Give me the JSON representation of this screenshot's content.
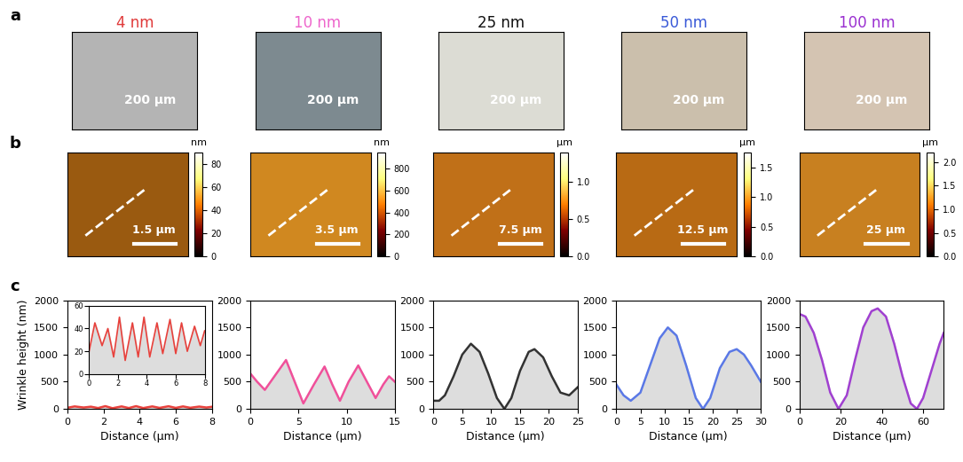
{
  "panel_labels": [
    "a",
    "b",
    "c"
  ],
  "optical": [
    {
      "title": "4 nm",
      "title_color": "#e03a3a",
      "scale_bar": "200 μm"
    },
    {
      "title": "10 nm",
      "title_color": "#ee66cc",
      "scale_bar": "200 μm"
    },
    {
      "title": "25 nm",
      "title_color": "#111111",
      "scale_bar": "200 μm"
    },
    {
      "title": "50 nm",
      "title_color": "#3a5ad8",
      "scale_bar": "200 μm"
    },
    {
      "title": "100 nm",
      "title_color": "#9a30d0",
      "scale_bar": "200 μm"
    }
  ],
  "afm": [
    {
      "scale_bar": "1.5 μm",
      "colorbar": {
        "unit": "nm",
        "range": [
          0,
          90
        ],
        "ticks": [
          0,
          20,
          40,
          60,
          80
        ]
      }
    },
    {
      "scale_bar": "3.5 μm",
      "colorbar": {
        "unit": "nm",
        "range": [
          0,
          950
        ],
        "ticks": [
          0,
          200,
          400,
          600,
          800
        ]
      }
    },
    {
      "scale_bar": "7.5 μm",
      "colorbar": {
        "unit": "μm",
        "range": [
          0,
          1.4
        ],
        "ticks": [
          {
            "value": 0,
            "label": "0.0"
          },
          0.5,
          {
            "value": 1,
            "label": "1.0"
          }
        ]
      }
    },
    {
      "scale_bar": "12.5 μm",
      "colorbar": {
        "unit": "μm",
        "range": [
          0,
          1.75
        ],
        "ticks": [
          {
            "value": 0,
            "label": "0.0"
          },
          0.5,
          {
            "value": 1,
            "label": "1.0"
          },
          1.5
        ]
      }
    },
    {
      "scale_bar": "25 μm",
      "colorbar": {
        "unit": "μm",
        "range": [
          0,
          2.2
        ],
        "ticks": [
          {
            "value": 0,
            "label": "0.0"
          },
          0.5,
          {
            "value": 1,
            "label": "1.0"
          },
          1.5,
          {
            "value": 2,
            "label": "2.0"
          }
        ]
      }
    }
  ],
  "chart_data": [
    {
      "type": "line",
      "y_label": "Wrinkle height (nm)",
      "x_label": "Distance (μm)",
      "color": "#e8413c",
      "x": [
        0,
        0.4,
        0.9,
        1.3,
        1.7,
        2.1,
        2.5,
        3.0,
        3.4,
        3.8,
        4.2,
        4.7,
        5.1,
        5.6,
        6.0,
        6.4,
        6.8,
        7.3,
        7.7,
        8.0
      ],
      "values": [
        20,
        45,
        25,
        40,
        15,
        50,
        12,
        45,
        15,
        50,
        15,
        45,
        18,
        48,
        18,
        45,
        20,
        42,
        25,
        38
      ],
      "xlim": [
        0,
        8
      ],
      "ylim": [
        0,
        2000
      ],
      "xticks": [
        0,
        2,
        4,
        6,
        8
      ],
      "yticks": [
        0,
        500,
        1000,
        1500,
        2000
      ],
      "inset": {
        "xlim": [
          0,
          8
        ],
        "ylim": [
          0,
          60
        ],
        "xticks": [
          0,
          2,
          4,
          6,
          8
        ],
        "yticks": [
          0,
          20,
          40,
          60
        ]
      }
    },
    {
      "type": "line",
      "x_label": "Distance (μm)",
      "color": "#f0509a",
      "x": [
        0,
        0.7,
        1.5,
        2.5,
        3.7,
        4.6,
        5.5,
        6.6,
        7.7,
        8.5,
        9.3,
        10.2,
        11.2,
        12.1,
        13,
        13.8,
        14.4,
        15
      ],
      "values": [
        650,
        500,
        350,
        600,
        900,
        500,
        100,
        450,
        780,
        450,
        150,
        500,
        800,
        500,
        200,
        450,
        600,
        500
      ],
      "xlim": [
        0,
        15
      ],
      "ylim": [
        0,
        2000
      ],
      "xticks": [
        0,
        5,
        10,
        15
      ],
      "yticks": [
        0,
        500,
        1000,
        1500,
        2000
      ]
    },
    {
      "type": "line",
      "x_label": "Distance (μm)",
      "color": "#333333",
      "x": [
        0,
        1,
        2,
        3.5,
        5,
        6.5,
        8,
        9.5,
        11,
        12.3,
        13.5,
        15,
        16.5,
        17.5,
        19,
        20.5,
        22,
        23.5,
        25
      ],
      "values": [
        150,
        150,
        250,
        600,
        1000,
        1200,
        1050,
        650,
        200,
        0,
        200,
        700,
        1050,
        1100,
        950,
        600,
        300,
        250,
        400
      ],
      "xlim": [
        0,
        25
      ],
      "ylim": [
        0,
        2000
      ],
      "xticks": [
        0,
        5,
        10,
        15,
        20,
        25
      ],
      "yticks": [
        0,
        500,
        1000,
        1500,
        2000
      ]
    },
    {
      "type": "line",
      "x_label": "Distance (μm)",
      "color": "#5a78e6",
      "x": [
        0,
        1.5,
        3,
        5,
        7,
        9,
        10.7,
        12.5,
        14.5,
        16.5,
        18,
        19.5,
        21.5,
        23.5,
        25,
        26.5,
        28,
        30
      ],
      "values": [
        450,
        250,
        150,
        300,
        800,
        1300,
        1500,
        1350,
        800,
        200,
        0,
        200,
        750,
        1050,
        1100,
        1000,
        800,
        500
      ],
      "xlim": [
        0,
        30
      ],
      "ylim": [
        0,
        2000
      ],
      "xticks": [
        0,
        5,
        10,
        15,
        20,
        25,
        30
      ],
      "yticks": [
        0,
        500,
        1000,
        1500,
        2000
      ]
    },
    {
      "type": "line",
      "x_label": "Distance (μm)",
      "color": "#a040d0",
      "x": [
        0,
        3,
        7,
        11,
        15,
        19,
        23,
        27,
        31,
        35,
        38,
        42,
        46,
        50,
        54,
        57,
        60,
        64,
        68,
        70
      ],
      "values": [
        1750,
        1700,
        1400,
        900,
        300,
        0,
        250,
        900,
        1500,
        1800,
        1850,
        1700,
        1200,
        600,
        100,
        0,
        200,
        700,
        1200,
        1400
      ],
      "xlim": [
        0,
        70
      ],
      "ylim": [
        0,
        2000
      ],
      "xticks": [
        0,
        20,
        40,
        60
      ],
      "yticks": [
        0,
        500,
        1000,
        1500,
        2000
      ]
    }
  ]
}
